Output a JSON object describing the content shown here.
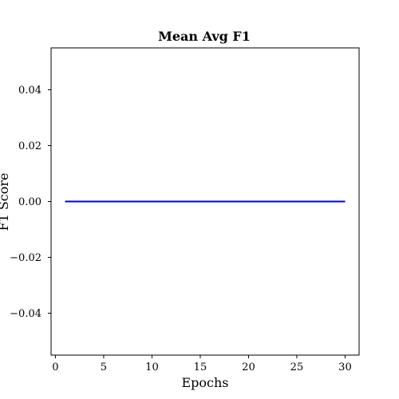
{
  "chart_data": {
    "type": "line",
    "title": "Mean Avg F1",
    "xlabel": "Epochs",
    "ylabel": "F1 Score",
    "xlim": [
      -0.45,
      31.45
    ],
    "ylim": [
      -0.055,
      0.055
    ],
    "x_ticks": [
      0,
      5,
      10,
      15,
      20,
      25,
      30
    ],
    "x_tick_labels": [
      "0",
      "5",
      "10",
      "15",
      "20",
      "25",
      "30"
    ],
    "y_ticks": [
      -0.04,
      -0.02,
      0.0,
      0.02,
      0.04
    ],
    "y_tick_labels": [
      "−0.04",
      "−0.02",
      "0.00",
      "0.02",
      "0.04"
    ],
    "grid": false,
    "series": [
      {
        "color": "#0000cc",
        "x": [
          1,
          2,
          3,
          4,
          5,
          6,
          7,
          8,
          9,
          10,
          11,
          12,
          13,
          14,
          15,
          16,
          17,
          18,
          19,
          20,
          21,
          22,
          23,
          24,
          25,
          26,
          27,
          28,
          29,
          30
        ],
        "y": [
          0,
          0,
          0,
          0,
          0,
          0,
          0,
          0,
          0,
          0,
          0,
          0,
          0,
          0,
          0,
          0,
          0,
          0,
          0,
          0,
          0,
          0,
          0,
          0,
          0,
          0,
          0,
          0,
          0,
          0
        ]
      }
    ]
  }
}
